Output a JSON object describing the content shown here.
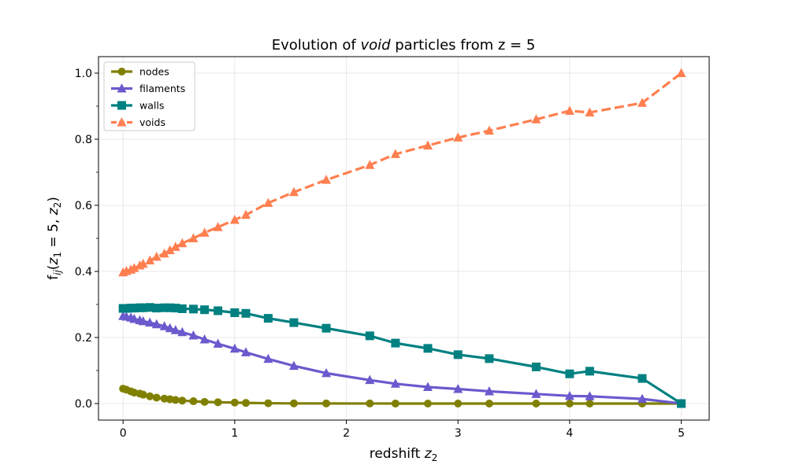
{
  "chart_data": {
    "type": "line",
    "title": {
      "pre": "Evolution of ",
      "em": "void",
      "post": " particles from z = 5"
    },
    "xlabel": {
      "pre": "redshift ",
      "var": "z",
      "sub": "2"
    },
    "ylabel": {
      "f": "f",
      "fsub": "ij",
      "open": "(",
      "v1": "z",
      "s1": "1",
      "mid": " = 5, ",
      "v2": "z",
      "s2": "2",
      "close": ")"
    },
    "xlim": [
      -0.22,
      5.25
    ],
    "ylim": [
      -0.05,
      1.05
    ],
    "xticks": [
      0,
      1,
      2,
      3,
      4,
      5
    ],
    "xtick_labels": [
      "0",
      "1",
      "2",
      "3",
      "4",
      "5"
    ],
    "yticks": [
      0.0,
      0.2,
      0.4,
      0.6,
      0.8,
      1.0
    ],
    "ytick_labels": [
      "0.0",
      "0.2",
      "0.4",
      "0.6",
      "0.8",
      "1.0"
    ],
    "grid": true,
    "legend_position": "top-left",
    "x": [
      0.0,
      0.03,
      0.07,
      0.1,
      0.15,
      0.18,
      0.24,
      0.3,
      0.37,
      0.42,
      0.47,
      0.53,
      0.63,
      0.73,
      0.85,
      1.0,
      1.1,
      1.3,
      1.53,
      1.82,
      2.21,
      2.44,
      2.73,
      3.0,
      3.28,
      3.7,
      4.0,
      4.18,
      4.65,
      5.0
    ],
    "series": [
      {
        "name": "nodes",
        "color": "#808000",
        "marker": "circle",
        "dash": "solid",
        "values": [
          0.045,
          0.042,
          0.037,
          0.033,
          0.03,
          0.027,
          0.022,
          0.018,
          0.015,
          0.013,
          0.011,
          0.009,
          0.007,
          0.005,
          0.004,
          0.003,
          0.002,
          0.001,
          0.0005,
          0.0003,
          0.0002,
          0.0001,
          0.0,
          0.0,
          0.0,
          0.0,
          0.0,
          0.0,
          0.0,
          0.0
        ]
      },
      {
        "name": "filaments",
        "color": "#6a5acd",
        "marker": "triangle",
        "dash": "solid",
        "values": [
          0.265,
          0.263,
          0.26,
          0.256,
          0.252,
          0.249,
          0.245,
          0.24,
          0.234,
          0.228,
          0.222,
          0.216,
          0.206,
          0.194,
          0.181,
          0.166,
          0.155,
          0.135,
          0.114,
          0.092,
          0.071,
          0.06,
          0.05,
          0.044,
          0.037,
          0.029,
          0.023,
          0.022,
          0.014,
          0.0
        ]
      },
      {
        "name": "walls",
        "color": "#008080",
        "marker": "square",
        "dash": "solid",
        "values": [
          0.288,
          0.288,
          0.289,
          0.289,
          0.29,
          0.29,
          0.291,
          0.289,
          0.29,
          0.29,
          0.289,
          0.287,
          0.286,
          0.284,
          0.281,
          0.275,
          0.273,
          0.258,
          0.245,
          0.228,
          0.205,
          0.183,
          0.167,
          0.148,
          0.136,
          0.111,
          0.09,
          0.098,
          0.076,
          0.0
        ]
      },
      {
        "name": "voids",
        "color": "#ff7f50",
        "marker": "triangle",
        "dash": "dashed",
        "values": [
          0.397,
          0.401,
          0.405,
          0.41,
          0.418,
          0.423,
          0.433,
          0.444,
          0.454,
          0.464,
          0.474,
          0.485,
          0.5,
          0.517,
          0.534,
          0.556,
          0.571,
          0.607,
          0.64,
          0.677,
          0.722,
          0.755,
          0.781,
          0.805,
          0.826,
          0.86,
          0.886,
          0.881,
          0.91,
          1.0
        ]
      }
    ]
  }
}
